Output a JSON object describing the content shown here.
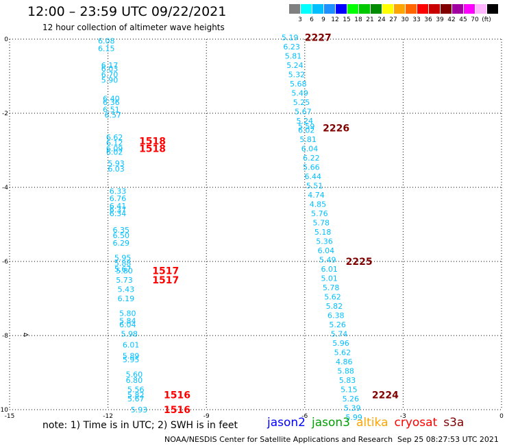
{
  "header": {
    "title": "12:00 – 23:59 UTC 09/22/2021",
    "subtitle": "12 hour collection of altimeter wave heights"
  },
  "colorbar": {
    "labels": [
      "3",
      "6",
      "9",
      "12",
      "15",
      "18",
      "21",
      "24",
      "27",
      "30",
      "33",
      "36",
      "39",
      "42",
      "45",
      "70",
      "(ft)"
    ],
    "colors": [
      "#808080",
      "#00ffff",
      "#00bfff",
      "#1e90ff",
      "#0000ff",
      "#00ff00",
      "#00c800",
      "#008c00",
      "#ffff00",
      "#ffa500",
      "#ff6600",
      "#ff0000",
      "#c80000",
      "#800000",
      "#a000a0",
      "#ff00ff",
      "#ffb6ff",
      "#000000"
    ]
  },
  "note": "note:  1) Time is in UTC;  2) SWH is in feet",
  "legend": [
    {
      "name": "jason2",
      "color": "#0000ff"
    },
    {
      "name": "jason3",
      "color": "#00a000"
    },
    {
      "name": "altika",
      "color": "#ffa500"
    },
    {
      "name": "cryosat",
      "color": "#ff0000"
    },
    {
      "name": "s3a",
      "color": "#800000"
    }
  ],
  "footer": {
    "credit": "NOAA/NESDIS Center for Satellite Applications and Research",
    "timestamp": "Sep 25 08:27:53 UTC 2021"
  },
  "chart_data": {
    "type": "scatter",
    "xlim": [
      -15,
      0
    ],
    "ylim": [
      -10,
      0
    ],
    "xticks": [
      "-15",
      "-12",
      "-9",
      "-6",
      "-3",
      "0"
    ],
    "yticks": [
      "0",
      "-2",
      "-4",
      "-6",
      "-8",
      "-10"
    ],
    "grid": true,
    "swh_color": "#00bfff",
    "track_label_colors": {
      "cryosat": "#ff0000",
      "s3a": "#800000"
    },
    "track_labels": [
      {
        "text": "2227",
        "satellite": "s3a",
        "x": -6.0,
        "y": 0.05
      },
      {
        "text": "2226",
        "satellite": "s3a",
        "x": -5.45,
        "y": -2.4
      },
      {
        "text": "2225",
        "satellite": "s3a",
        "x": -4.75,
        "y": -6.0
      },
      {
        "text": "2224",
        "satellite": "s3a",
        "x": -3.95,
        "y": -9.6
      },
      {
        "text": "1518",
        "satellite": "cryosat",
        "x": -11.05,
        "y": -2.75
      },
      {
        "text": "1518",
        "satellite": "cryosat",
        "x": -11.05,
        "y": -2.95
      },
      {
        "text": "1517",
        "satellite": "cryosat",
        "x": -10.65,
        "y": -6.25
      },
      {
        "text": "1517",
        "satellite": "cryosat",
        "x": -10.65,
        "y": -6.5
      },
      {
        "text": "1516",
        "satellite": "cryosat",
        "x": -10.3,
        "y": -9.6
      },
      {
        "text": "1516",
        "satellite": "cryosat",
        "x": -10.3,
        "y": -10.0
      }
    ],
    "points": [
      {
        "x": -12.05,
        "y": -0.05,
        "v": "6.08"
      },
      {
        "x": -12.05,
        "y": -0.25,
        "v": "6.15"
      },
      {
        "x": -11.95,
        "y": -0.7,
        "v": "6.17"
      },
      {
        "x": -11.95,
        "y": -0.8,
        "v": "6.03"
      },
      {
        "x": -11.95,
        "y": -0.95,
        "v": "6.70"
      },
      {
        "x": -11.95,
        "y": -1.1,
        "v": "5.90"
      },
      {
        "x": -11.9,
        "y": -1.6,
        "v": "6.40"
      },
      {
        "x": -11.9,
        "y": -1.7,
        "v": "6.36"
      },
      {
        "x": -11.9,
        "y": -1.9,
        "v": "6.51"
      },
      {
        "x": -11.85,
        "y": -2.05,
        "v": "6.57"
      },
      {
        "x": -11.8,
        "y": -2.65,
        "v": "6.62"
      },
      {
        "x": -11.8,
        "y": -2.8,
        "v": "6.12"
      },
      {
        "x": -11.8,
        "y": -2.95,
        "v": "6.09"
      },
      {
        "x": -11.8,
        "y": -3.05,
        "v": "6.02"
      },
      {
        "x": -11.75,
        "y": -3.35,
        "v": "5.93"
      },
      {
        "x": -11.75,
        "y": -3.5,
        "v": "6.03"
      },
      {
        "x": -11.7,
        "y": -4.1,
        "v": "6.33"
      },
      {
        "x": -11.7,
        "y": -4.3,
        "v": "6.76"
      },
      {
        "x": -11.7,
        "y": -4.5,
        "v": "6.41"
      },
      {
        "x": -11.7,
        "y": -4.6,
        "v": "6.37"
      },
      {
        "x": -11.7,
        "y": -4.7,
        "v": "6.34"
      },
      {
        "x": -11.6,
        "y": -5.15,
        "v": "6.35"
      },
      {
        "x": -11.6,
        "y": -5.3,
        "v": "6.50"
      },
      {
        "x": -11.6,
        "y": -5.5,
        "v": "6.29"
      },
      {
        "x": -11.55,
        "y": -5.9,
        "v": "5.95"
      },
      {
        "x": -11.55,
        "y": -6.05,
        "v": "5.88"
      },
      {
        "x": -11.55,
        "y": -6.2,
        "v": "5.67"
      },
      {
        "x": -11.5,
        "y": -6.25,
        "v": "5.80"
      },
      {
        "x": -11.5,
        "y": -6.5,
        "v": "5.73"
      },
      {
        "x": -11.45,
        "y": -6.75,
        "v": "5.43"
      },
      {
        "x": -11.45,
        "y": -7.0,
        "v": "6.19"
      },
      {
        "x": -11.4,
        "y": -7.4,
        "v": "5.80"
      },
      {
        "x": -11.4,
        "y": -7.6,
        "v": "5.84"
      },
      {
        "x": -11.4,
        "y": -7.7,
        "v": "6.04"
      },
      {
        "x": -11.35,
        "y": -7.95,
        "v": "5.98"
      },
      {
        "x": -11.3,
        "y": -8.25,
        "v": "6.01"
      },
      {
        "x": -11.3,
        "y": -8.55,
        "v": "5.89"
      },
      {
        "x": -11.3,
        "y": -8.65,
        "v": "5.95"
      },
      {
        "x": -11.2,
        "y": -9.05,
        "v": "5.60"
      },
      {
        "x": -11.2,
        "y": -9.2,
        "v": "6.80"
      },
      {
        "x": -11.15,
        "y": -9.45,
        "v": "5.56"
      },
      {
        "x": -11.15,
        "y": -9.6,
        "v": "5.82"
      },
      {
        "x": -11.15,
        "y": -9.7,
        "v": "5.67"
      },
      {
        "x": -11.05,
        "y": -10.0,
        "v": "5.93"
      },
      {
        "x": -6.45,
        "y": 0.05,
        "v": "5.19"
      },
      {
        "x": -6.4,
        "y": -0.2,
        "v": "6.23"
      },
      {
        "x": -6.35,
        "y": -0.45,
        "v": "5.81"
      },
      {
        "x": -6.3,
        "y": -0.7,
        "v": "5.24"
      },
      {
        "x": -6.25,
        "y": -0.95,
        "v": "5.32"
      },
      {
        "x": -6.2,
        "y": -1.2,
        "v": "5.68"
      },
      {
        "x": -6.15,
        "y": -1.45,
        "v": "5.49"
      },
      {
        "x": -6.1,
        "y": -1.7,
        "v": "5.25"
      },
      {
        "x": -6.05,
        "y": -1.95,
        "v": "5.67"
      },
      {
        "x": -6.0,
        "y": -2.2,
        "v": "5.24"
      },
      {
        "x": -5.95,
        "y": -2.35,
        "v": "5.59"
      },
      {
        "x": -5.95,
        "y": -2.45,
        "v": "6.02"
      },
      {
        "x": -5.9,
        "y": -2.7,
        "v": "5.81"
      },
      {
        "x": -5.85,
        "y": -2.95,
        "v": "6.04"
      },
      {
        "x": -5.8,
        "y": -3.2,
        "v": "6.22"
      },
      {
        "x": -5.8,
        "y": -3.45,
        "v": "5.66"
      },
      {
        "x": -5.75,
        "y": -3.7,
        "v": "6.44"
      },
      {
        "x": -5.7,
        "y": -3.95,
        "v": "5.51"
      },
      {
        "x": -5.65,
        "y": -4.2,
        "v": "4.74"
      },
      {
        "x": -5.6,
        "y": -4.45,
        "v": "4.85"
      },
      {
        "x": -5.55,
        "y": -4.7,
        "v": "5.76"
      },
      {
        "x": -5.5,
        "y": -4.95,
        "v": "5.78"
      },
      {
        "x": -5.45,
        "y": -5.2,
        "v": "5.18"
      },
      {
        "x": -5.4,
        "y": -5.45,
        "v": "5.36"
      },
      {
        "x": -5.35,
        "y": -5.7,
        "v": "6.04"
      },
      {
        "x": -5.3,
        "y": -5.95,
        "v": "5.49"
      },
      {
        "x": -5.25,
        "y": -6.2,
        "v": "6.01"
      },
      {
        "x": -5.25,
        "y": -6.45,
        "v": "5.01"
      },
      {
        "x": -5.2,
        "y": -6.7,
        "v": "5.78"
      },
      {
        "x": -5.15,
        "y": -6.95,
        "v": "5.62"
      },
      {
        "x": -5.1,
        "y": -7.2,
        "v": "5.82"
      },
      {
        "x": -5.05,
        "y": -7.45,
        "v": "6.38"
      },
      {
        "x": -5.0,
        "y": -7.7,
        "v": "5.26"
      },
      {
        "x": -4.95,
        "y": -7.95,
        "v": "5.74"
      },
      {
        "x": -4.9,
        "y": -8.2,
        "v": "5.96"
      },
      {
        "x": -4.85,
        "y": -8.45,
        "v": "5.62"
      },
      {
        "x": -4.8,
        "y": -8.7,
        "v": "4.86"
      },
      {
        "x": -4.75,
        "y": -8.95,
        "v": "5.88"
      },
      {
        "x": -4.7,
        "y": -9.2,
        "v": "5.83"
      },
      {
        "x": -4.65,
        "y": -9.45,
        "v": "5.15"
      },
      {
        "x": -4.6,
        "y": -9.7,
        "v": "5.26"
      },
      {
        "x": -4.55,
        "y": -9.95,
        "v": "5.39"
      },
      {
        "x": -4.5,
        "y": -10.2,
        "v": "5.99"
      }
    ]
  }
}
